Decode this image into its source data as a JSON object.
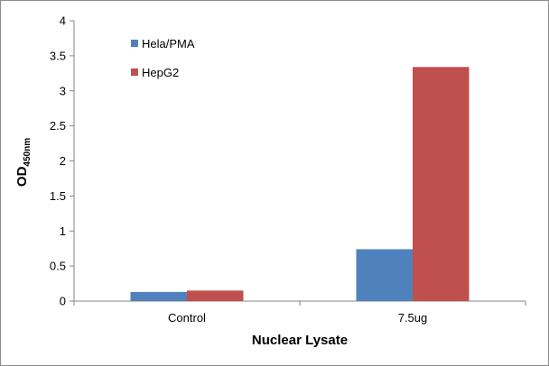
{
  "chart_data": {
    "type": "bar",
    "categories": [
      "Control",
      "7.5ug"
    ],
    "series": [
      {
        "name": "Hela/PMA",
        "values": [
          0.13,
          0.74
        ],
        "color": "#4f81bd"
      },
      {
        "name": "HepG2",
        "values": [
          0.15,
          3.34
        ],
        "color": "#c0504d"
      }
    ],
    "xlabel": "Nuclear Lysate",
    "ylabel": "OD",
    "ylabel_subscript": "450nm",
    "ylim": [
      0,
      4
    ],
    "yticks": [
      "0",
      "0.5",
      "1",
      "1.5",
      "2",
      "2.5",
      "3",
      "3.5",
      "4"
    ],
    "grid": false,
    "legend_position": "top-left"
  }
}
